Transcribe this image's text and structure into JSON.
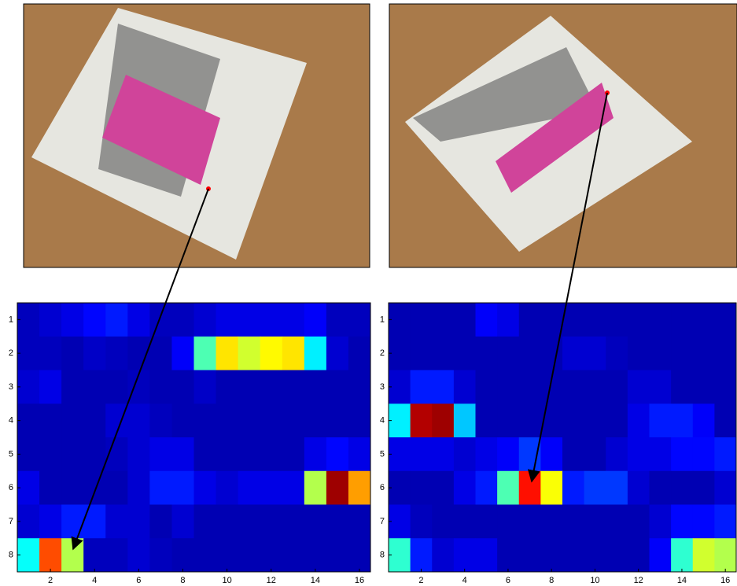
{
  "chart_data": [
    {
      "type": "heatmap",
      "colormap": "jet",
      "xticks": [
        2,
        4,
        6,
        8,
        10,
        12,
        14,
        16
      ],
      "yticks": [
        1,
        2,
        3,
        4,
        5,
        6,
        7,
        8
      ],
      "xlim": [
        0.5,
        16.5
      ],
      "ylim": [
        0.5,
        8.5
      ],
      "values": [
        [
          0.06,
          0.08,
          0.1,
          0.13,
          0.15,
          0.1,
          0.06,
          0.06,
          0.08,
          0.1,
          0.1,
          0.1,
          0.1,
          0.12,
          0.06,
          0.06
        ],
        [
          0.06,
          0.06,
          0.05,
          0.07,
          0.06,
          0.05,
          0.05,
          0.12,
          0.45,
          0.65,
          0.58,
          0.63,
          0.65,
          0.36,
          0.08,
          0.05
        ],
        [
          0.08,
          0.1,
          0.05,
          0.05,
          0.05,
          0.06,
          0.05,
          0.05,
          0.07,
          0.05,
          0.05,
          0.05,
          0.05,
          0.05,
          0.05,
          0.05
        ],
        [
          0.05,
          0.05,
          0.05,
          0.05,
          0.08,
          0.08,
          0.06,
          0.05,
          0.05,
          0.05,
          0.05,
          0.05,
          0.05,
          0.05,
          0.05,
          0.05
        ],
        [
          0.05,
          0.05,
          0.05,
          0.05,
          0.06,
          0.08,
          0.1,
          0.1,
          0.05,
          0.05,
          0.05,
          0.05,
          0.05,
          0.1,
          0.13,
          0.1
        ],
        [
          0.1,
          0.05,
          0.05,
          0.05,
          0.05,
          0.08,
          0.15,
          0.15,
          0.1,
          0.08,
          0.1,
          0.1,
          0.1,
          0.55,
          0.97,
          0.72
        ],
        [
          0.08,
          0.1,
          0.15,
          0.15,
          0.08,
          0.08,
          0.05,
          0.08,
          0.05,
          0.05,
          0.05,
          0.05,
          0.05,
          0.05,
          0.05,
          0.05
        ],
        [
          0.38,
          0.8,
          0.55,
          0.06,
          0.06,
          0.08,
          0.06,
          0.05,
          0.05,
          0.05,
          0.05,
          0.05,
          0.05,
          0.05,
          0.05,
          0.05
        ]
      ]
    },
    {
      "type": "heatmap",
      "colormap": "jet",
      "xticks": [
        2,
        4,
        6,
        8,
        10,
        12,
        14,
        16
      ],
      "yticks": [
        1,
        2,
        3,
        4,
        5,
        6,
        7,
        8
      ],
      "xlim": [
        0.5,
        16.5
      ],
      "ylim": [
        0.5,
        8.5
      ],
      "values": [
        [
          0.05,
          0.05,
          0.05,
          0.05,
          0.12,
          0.1,
          0.05,
          0.05,
          0.05,
          0.05,
          0.05,
          0.05,
          0.05,
          0.05,
          0.05,
          0.05
        ],
        [
          0.05,
          0.05,
          0.05,
          0.05,
          0.05,
          0.05,
          0.05,
          0.05,
          0.08,
          0.08,
          0.06,
          0.05,
          0.05,
          0.05,
          0.05,
          0.05
        ],
        [
          0.08,
          0.15,
          0.15,
          0.08,
          0.05,
          0.05,
          0.05,
          0.05,
          0.05,
          0.05,
          0.05,
          0.08,
          0.08,
          0.05,
          0.05,
          0.05
        ],
        [
          0.36,
          0.95,
          0.97,
          0.32,
          0.05,
          0.05,
          0.05,
          0.05,
          0.05,
          0.05,
          0.05,
          0.1,
          0.15,
          0.15,
          0.12,
          0.05
        ],
        [
          0.1,
          0.1,
          0.1,
          0.08,
          0.1,
          0.12,
          0.18,
          0.12,
          0.05,
          0.05,
          0.08,
          0.1,
          0.1,
          0.13,
          0.13,
          0.15
        ],
        [
          0.05,
          0.05,
          0.05,
          0.1,
          0.15,
          0.45,
          0.86,
          0.62,
          0.15,
          0.18,
          0.18,
          0.08,
          0.05,
          0.05,
          0.05,
          0.08
        ],
        [
          0.1,
          0.06,
          0.05,
          0.05,
          0.05,
          0.05,
          0.05,
          0.05,
          0.05,
          0.05,
          0.05,
          0.05,
          0.08,
          0.13,
          0.13,
          0.15
        ],
        [
          0.42,
          0.15,
          0.08,
          0.1,
          0.1,
          0.05,
          0.05,
          0.05,
          0.05,
          0.05,
          0.05,
          0.05,
          0.12,
          0.42,
          0.58,
          0.55
        ]
      ]
    }
  ]
}
